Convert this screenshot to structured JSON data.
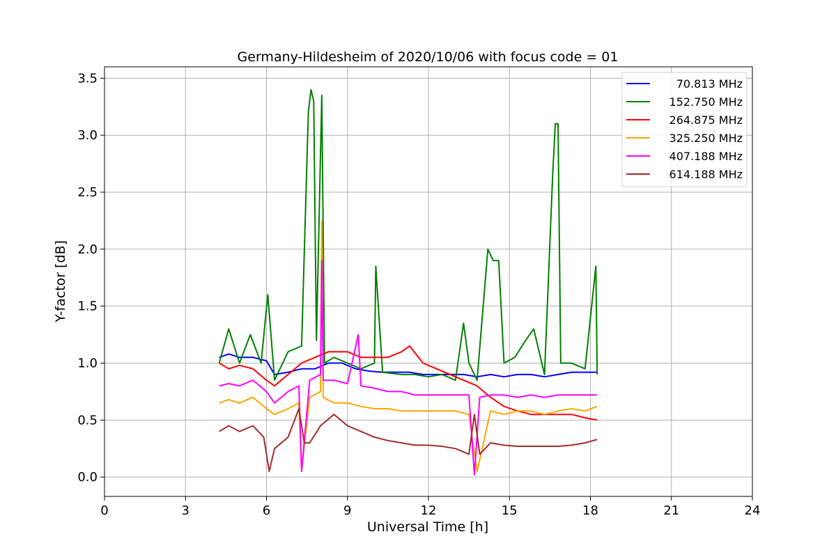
{
  "chart_data": {
    "type": "line",
    "title": "Germany-Hildesheim of 2020/10/06 with focus code = 01",
    "xlabel": "Universal Time [h]",
    "ylabel": "Y-factor [dB]",
    "xlim": [
      0,
      24
    ],
    "ylim": [
      -0.17,
      3.6
    ],
    "xticks": [
      0,
      3,
      6,
      9,
      12,
      15,
      18,
      21,
      24
    ],
    "xtick_labels": [
      "0",
      "3",
      "6",
      "9",
      "12",
      "15",
      "18",
      "21",
      "24"
    ],
    "yticks": [
      0.0,
      0.5,
      1.0,
      1.5,
      2.0,
      2.5,
      3.0,
      3.5
    ],
    "ytick_labels": [
      "0.0",
      "0.5",
      "1.0",
      "1.5",
      "2.0",
      "2.5",
      "3.0",
      "3.5"
    ],
    "grid": true,
    "legend_position": "top-right",
    "series": [
      {
        "name": "70.813 MHz",
        "color": "#0000ff",
        "x": [
          4.25,
          4.6,
          5.0,
          5.5,
          6.0,
          6.3,
          6.8,
          7.3,
          7.8,
          8.3,
          8.8,
          9.3,
          9.8,
          10.3,
          10.8,
          11.3,
          11.8,
          12.3,
          12.8,
          13.3,
          13.8,
          14.3,
          14.8,
          15.3,
          15.8,
          16.3,
          16.8,
          17.3,
          17.8,
          18.25
        ],
        "y": [
          1.05,
          1.08,
          1.05,
          1.05,
          1.02,
          0.9,
          0.92,
          0.95,
          0.95,
          1.0,
          1.0,
          0.95,
          0.93,
          0.92,
          0.92,
          0.92,
          0.9,
          0.9,
          0.9,
          0.9,
          0.88,
          0.9,
          0.88,
          0.9,
          0.9,
          0.88,
          0.9,
          0.92,
          0.92,
          0.92
        ]
      },
      {
        "name": "152.750 MHz",
        "color": "#008000",
        "x": [
          4.25,
          4.6,
          5.0,
          5.4,
          5.8,
          6.05,
          6.3,
          6.8,
          7.3,
          7.55,
          7.65,
          7.75,
          7.85,
          8.05,
          8.15,
          8.5,
          9.0,
          9.5,
          10.0,
          10.05,
          10.3,
          11.0,
          11.5,
          12.0,
          12.5,
          13.0,
          13.3,
          13.5,
          13.8,
          14.2,
          14.4,
          14.6,
          14.8,
          15.2,
          15.6,
          15.9,
          16.3,
          16.6,
          16.7,
          16.8,
          16.9,
          17.3,
          17.8,
          18.2,
          18.25
        ],
        "y": [
          1.0,
          1.3,
          1.0,
          1.25,
          1.0,
          1.6,
          0.85,
          1.1,
          1.15,
          3.2,
          3.4,
          3.3,
          1.2,
          3.35,
          1.0,
          1.05,
          1.0,
          0.95,
          1.0,
          1.85,
          0.92,
          0.9,
          0.9,
          0.88,
          0.9,
          0.85,
          1.35,
          1.0,
          0.85,
          2.0,
          1.9,
          1.9,
          1.0,
          1.05,
          1.2,
          1.3,
          0.9,
          2.65,
          3.1,
          3.1,
          1.0,
          1.0,
          0.95,
          1.85,
          0.9
        ]
      },
      {
        "name": "264.875 MHz",
        "color": "#ff0000",
        "x": [
          4.25,
          4.6,
          5.0,
          5.5,
          6.0,
          6.3,
          6.8,
          7.3,
          7.8,
          8.3,
          8.6,
          9.0,
          9.5,
          10.0,
          10.5,
          11.0,
          11.3,
          11.8,
          12.3,
          12.8,
          13.3,
          13.8,
          14.3,
          14.8,
          15.3,
          15.8,
          16.3,
          16.8,
          17.3,
          17.8,
          18.25
        ],
        "y": [
          1.0,
          0.95,
          0.98,
          0.95,
          0.85,
          0.8,
          0.9,
          1.0,
          1.05,
          1.1,
          1.1,
          1.1,
          1.05,
          1.05,
          1.05,
          1.1,
          1.15,
          1.0,
          0.95,
          0.9,
          0.85,
          0.8,
          0.7,
          0.62,
          0.58,
          0.55,
          0.55,
          0.55,
          0.55,
          0.52,
          0.5
        ]
      },
      {
        "name": "325.250 MHz",
        "color": "#ffa500",
        "x": [
          4.25,
          4.6,
          5.0,
          5.5,
          6.0,
          6.3,
          6.8,
          7.2,
          7.3,
          7.6,
          8.0,
          8.05,
          8.1,
          8.5,
          9.0,
          9.5,
          10.0,
          10.5,
          11.0,
          11.5,
          12.0,
          12.5,
          13.0,
          13.5,
          13.8,
          14.3,
          14.8,
          15.3,
          15.8,
          16.3,
          16.8,
          17.3,
          17.8,
          18.25
        ],
        "y": [
          0.65,
          0.68,
          0.65,
          0.7,
          0.6,
          0.55,
          0.6,
          0.65,
          0.05,
          0.7,
          0.75,
          2.25,
          0.7,
          0.65,
          0.65,
          0.62,
          0.6,
          0.6,
          0.58,
          0.58,
          0.58,
          0.58,
          0.58,
          0.55,
          0.05,
          0.58,
          0.55,
          0.58,
          0.58,
          0.55,
          0.58,
          0.6,
          0.58,
          0.62
        ]
      },
      {
        "name": "407.188 MHz",
        "color": "#ff00ff",
        "x": [
          4.25,
          4.6,
          5.0,
          5.5,
          6.0,
          6.3,
          6.8,
          7.2,
          7.3,
          7.6,
          8.0,
          8.05,
          8.1,
          8.5,
          9.0,
          9.4,
          9.5,
          10.0,
          10.5,
          11.0,
          11.5,
          12.0,
          12.5,
          13.0,
          13.5,
          13.7,
          13.9,
          14.3,
          14.8,
          15.3,
          15.8,
          16.3,
          16.8,
          17.3,
          17.8,
          18.25
        ],
        "y": [
          0.8,
          0.82,
          0.8,
          0.85,
          0.75,
          0.65,
          0.75,
          0.8,
          0.05,
          0.85,
          0.9,
          1.9,
          0.85,
          0.85,
          0.82,
          1.25,
          0.8,
          0.78,
          0.75,
          0.75,
          0.72,
          0.72,
          0.72,
          0.72,
          0.72,
          0.02,
          0.7,
          0.72,
          0.72,
          0.7,
          0.72,
          0.7,
          0.72,
          0.72,
          0.72,
          0.72
        ]
      },
      {
        "name": "614.188 MHz",
        "color": "#a52a2a",
        "x": [
          4.25,
          4.6,
          5.0,
          5.5,
          5.9,
          6.1,
          6.3,
          6.8,
          7.2,
          7.4,
          7.6,
          8.0,
          8.5,
          9.0,
          9.5,
          10.0,
          10.5,
          11.0,
          11.5,
          12.0,
          12.5,
          13.0,
          13.5,
          13.7,
          13.9,
          14.3,
          14.8,
          15.3,
          15.8,
          16.3,
          16.8,
          17.3,
          17.8,
          18.25
        ],
        "y": [
          0.4,
          0.45,
          0.4,
          0.45,
          0.35,
          0.05,
          0.25,
          0.35,
          0.6,
          0.3,
          0.3,
          0.45,
          0.55,
          0.45,
          0.4,
          0.35,
          0.32,
          0.3,
          0.28,
          0.28,
          0.27,
          0.25,
          0.2,
          0.55,
          0.2,
          0.3,
          0.28,
          0.27,
          0.27,
          0.27,
          0.27,
          0.28,
          0.3,
          0.33
        ]
      }
    ]
  }
}
